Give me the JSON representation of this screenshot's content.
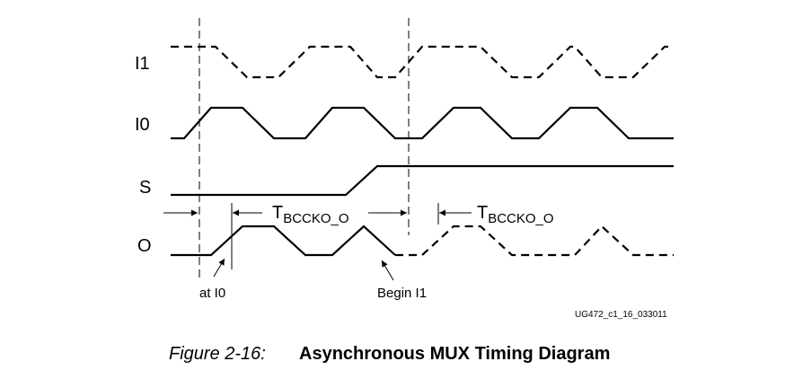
{
  "signals": [
    {
      "label": "I1"
    },
    {
      "label": "I0"
    },
    {
      "label": "S"
    },
    {
      "label": "O"
    }
  ],
  "timing_labels": [
    {
      "main": "T",
      "subscript": "BCCKO_O"
    },
    {
      "main": "T",
      "subscript": "BCCKO_O"
    }
  ],
  "callouts": [
    {
      "label": "at I0"
    },
    {
      "label": "Begin I1"
    }
  ],
  "figure_id": "UG472_c1_16_033011",
  "caption": {
    "number": "Figure 2-16:",
    "title": "Asynchronous MUX Timing Diagram"
  }
}
